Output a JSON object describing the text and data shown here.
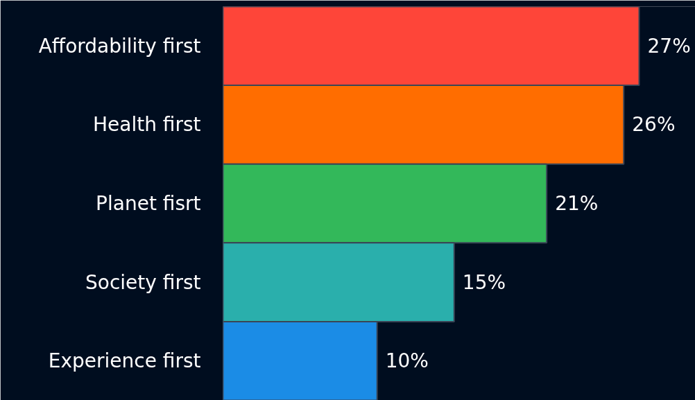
{
  "chart_data": {
    "type": "bar",
    "orientation": "horizontal",
    "categories": [
      "Affordability first",
      "Health first",
      "Planet fisrt",
      "Society first",
      "Experience first"
    ],
    "values": [
      27,
      26,
      21,
      15,
      10
    ],
    "colors": [
      "#fe4539",
      "#ff6d00",
      "#33b85a",
      "#2aafac",
      "#1b8ce6"
    ],
    "value_labels": [
      "27%",
      "26%",
      "21%",
      "15%",
      "10%"
    ],
    "grid": false
  }
}
